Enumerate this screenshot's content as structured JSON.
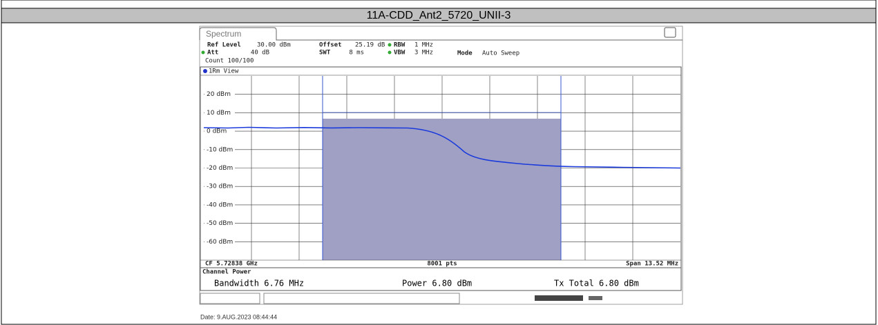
{
  "header": {
    "title": "11A-CDD_Ant2_5720_UNII-3"
  },
  "screen": {
    "tab": "Spectrum",
    "settings": [
      {
        "label": "Ref Level",
        "value": "30.00 dBm"
      },
      {
        "label": "Offset",
        "value": "25.19 dB"
      },
      {
        "label": "RBW",
        "value": "1 MHz"
      },
      {
        "label": "Att",
        "value": "40 dB"
      },
      {
        "label": "SWT",
        "value": "8 ms"
      },
      {
        "label": "VBW",
        "value": "3 MHz"
      },
      {
        "label": "Mode",
        "value": "Auto Sweep"
      }
    ],
    "count": "Count 100/100",
    "view": "1Rm View",
    "y_labels": [
      "20 dBm",
      "10 dBm",
      "0 dBm",
      "-10 dBm",
      "-20 dBm",
      "-30 dBm",
      "-40 dBm",
      "-50 dBm",
      "-60 dBm"
    ],
    "center": "CF 5.72838 GHz",
    "points": "8001 pts",
    "span": "Span 13.52 MHz",
    "channel_power": {
      "title": "Channel Power",
      "bandwidth": "Bandwidth 6.76 MHz",
      "power": "Power 6.80 dBm",
      "tx_total": "Tx Total 6.80 dBm"
    }
  },
  "date": "Date: 9.AUG.2023 08:44:44"
}
